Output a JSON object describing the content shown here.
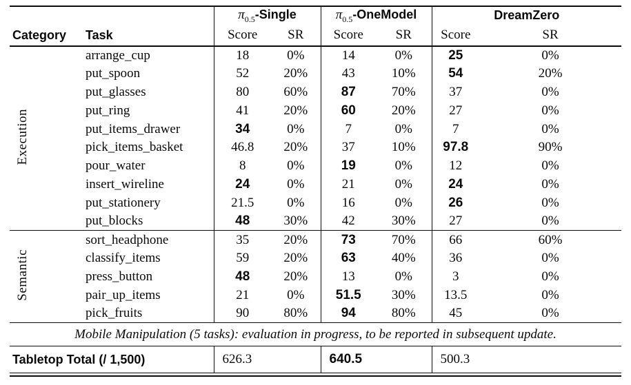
{
  "page": {
    "background": "#ffffff",
    "text_color": "#0a0a0a"
  },
  "table": {
    "header": {
      "category": "Category",
      "task": "Task",
      "groups": [
        {
          "pi": "π",
          "pi_sub": "0.5",
          "name": "-Single",
          "score": "Score",
          "sr": "SR"
        },
        {
          "pi": "π",
          "pi_sub": "0.5",
          "name": "-OneModel",
          "score": "Score",
          "sr": "SR"
        },
        {
          "pi": "",
          "pi_sub": "",
          "name": "DreamZero",
          "score": "Score",
          "sr": "SR"
        }
      ]
    },
    "sections": [
      {
        "category": "Execution",
        "rows": [
          {
            "task": "arrange_cup",
            "single": {
              "score": "18",
              "bold": false,
              "sr": "0%"
            },
            "onemodel": {
              "score": "14",
              "bold": false,
              "sr": "0%"
            },
            "dreamzero": {
              "score": "25",
              "bold": true,
              "sr": "0%"
            }
          },
          {
            "task": "put_spoon",
            "single": {
              "score": "52",
              "bold": false,
              "sr": "20%"
            },
            "onemodel": {
              "score": "43",
              "bold": false,
              "sr": "10%"
            },
            "dreamzero": {
              "score": "54",
              "bold": true,
              "sr": "20%"
            }
          },
          {
            "task": "put_glasses",
            "single": {
              "score": "80",
              "bold": false,
              "sr": "60%"
            },
            "onemodel": {
              "score": "87",
              "bold": true,
              "sr": "70%"
            },
            "dreamzero": {
              "score": "37",
              "bold": false,
              "sr": "0%"
            }
          },
          {
            "task": "put_ring",
            "single": {
              "score": "41",
              "bold": false,
              "sr": "20%"
            },
            "onemodel": {
              "score": "60",
              "bold": true,
              "sr": "20%"
            },
            "dreamzero": {
              "score": "27",
              "bold": false,
              "sr": "0%"
            }
          },
          {
            "task": "put_items_drawer",
            "single": {
              "score": "34",
              "bold": true,
              "sr": "0%"
            },
            "onemodel": {
              "score": "7",
              "bold": false,
              "sr": "0%"
            },
            "dreamzero": {
              "score": "7",
              "bold": false,
              "sr": "0%"
            }
          },
          {
            "task": "pick_items_basket",
            "single": {
              "score": "46.8",
              "bold": false,
              "sr": "20%"
            },
            "onemodel": {
              "score": "37",
              "bold": false,
              "sr": "10%"
            },
            "dreamzero": {
              "score": "97.8",
              "bold": true,
              "sr": "90%"
            }
          },
          {
            "task": "pour_water",
            "single": {
              "score": "8",
              "bold": false,
              "sr": "0%"
            },
            "onemodel": {
              "score": "19",
              "bold": true,
              "sr": "0%"
            },
            "dreamzero": {
              "score": "12",
              "bold": false,
              "sr": "0%"
            }
          },
          {
            "task": "insert_wireline",
            "single": {
              "score": "24",
              "bold": true,
              "sr": "0%"
            },
            "onemodel": {
              "score": "21",
              "bold": false,
              "sr": "0%"
            },
            "dreamzero": {
              "score": "24",
              "bold": true,
              "sr": "0%"
            }
          },
          {
            "task": "put_stationery",
            "single": {
              "score": "21.5",
              "bold": false,
              "sr": "0%"
            },
            "onemodel": {
              "score": "16",
              "bold": false,
              "sr": "0%"
            },
            "dreamzero": {
              "score": "26",
              "bold": true,
              "sr": "0%"
            }
          },
          {
            "task": "put_blocks",
            "single": {
              "score": "48",
              "bold": true,
              "sr": "30%"
            },
            "onemodel": {
              "score": "42",
              "bold": false,
              "sr": "30%"
            },
            "dreamzero": {
              "score": "27",
              "bold": false,
              "sr": "0%"
            }
          }
        ]
      },
      {
        "category": "Semantic",
        "rows": [
          {
            "task": "sort_headphone",
            "single": {
              "score": "35",
              "bold": false,
              "sr": "20%"
            },
            "onemodel": {
              "score": "73",
              "bold": true,
              "sr": "70%"
            },
            "dreamzero": {
              "score": "66",
              "bold": false,
              "sr": "60%"
            }
          },
          {
            "task": "classify_items",
            "single": {
              "score": "59",
              "bold": false,
              "sr": "20%"
            },
            "onemodel": {
              "score": "63",
              "bold": true,
              "sr": "40%"
            },
            "dreamzero": {
              "score": "36",
              "bold": false,
              "sr": "0%"
            }
          },
          {
            "task": "press_button",
            "single": {
              "score": "48",
              "bold": true,
              "sr": "20%"
            },
            "onemodel": {
              "score": "13",
              "bold": false,
              "sr": "0%"
            },
            "dreamzero": {
              "score": "3",
              "bold": false,
              "sr": "0%"
            }
          },
          {
            "task": "pair_up_items",
            "single": {
              "score": "21",
              "bold": false,
              "sr": "0%"
            },
            "onemodel": {
              "score": "51.5",
              "bold": true,
              "sr": "30%"
            },
            "dreamzero": {
              "score": "13.5",
              "bold": false,
              "sr": "0%"
            }
          },
          {
            "task": "pick_fruits",
            "single": {
              "score": "90",
              "bold": false,
              "sr": "80%"
            },
            "onemodel": {
              "score": "94",
              "bold": true,
              "sr": "80%"
            },
            "dreamzero": {
              "score": "45",
              "bold": false,
              "sr": "0%"
            }
          }
        ]
      }
    ],
    "note": "Mobile Manipulation (5 tasks): evaluation in progress, to be reported in subsequent update.",
    "total": {
      "label": "Tabletop Total (/ 1,500)",
      "values": [
        {
          "score": "626.3",
          "bold": false
        },
        {
          "score": "640.5",
          "bold": true
        },
        {
          "score": "500.3",
          "bold": false
        }
      ]
    }
  }
}
